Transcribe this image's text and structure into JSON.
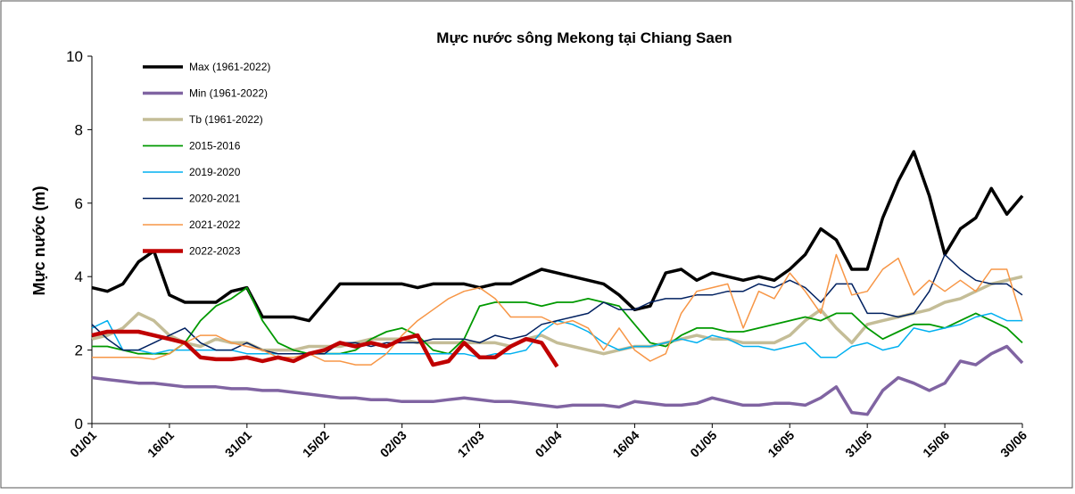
{
  "chart_data": {
    "type": "line",
    "title": "Mực nước sông Mekong tại Chiang Saen",
    "y_label": "Mực nước (m)",
    "categories": [
      "01/01",
      null,
      null,
      null,
      null,
      "16/01",
      null,
      null,
      null,
      null,
      "31/01",
      null,
      null,
      null,
      null,
      "15/02",
      null,
      null,
      null,
      null,
      "02/03",
      null,
      null,
      null,
      null,
      "17/03",
      null,
      null,
      null,
      null,
      "01/04",
      null,
      null,
      null,
      null,
      "16/04",
      null,
      null,
      null,
      null,
      "01/05",
      null,
      null,
      null,
      null,
      "16/05",
      null,
      null,
      null,
      null,
      "31/05",
      null,
      null,
      null,
      null,
      "15/06",
      null,
      null,
      null,
      null,
      "30/06"
    ],
    "ylim": [
      0,
      10
    ],
    "yticks": [
      0,
      2,
      4,
      6,
      8,
      10
    ],
    "legend": "top-left",
    "series": [
      {
        "name": "Max (1961-2022)",
        "color": "#000000",
        "width": 3.5,
        "values": [
          3.7,
          3.6,
          3.8,
          4.4,
          4.7,
          3.5,
          3.3,
          3.3,
          3.3,
          3.6,
          3.7,
          2.9,
          2.9,
          2.9,
          2.8,
          3.3,
          3.8,
          3.8,
          3.8,
          3.8,
          3.8,
          3.7,
          3.8,
          3.8,
          3.8,
          3.7,
          3.8,
          3.8,
          4.0,
          4.2,
          4.1,
          4.0,
          3.9,
          3.8,
          3.5,
          3.1,
          3.2,
          4.1,
          4.2,
          3.9,
          4.1,
          4.0,
          3.9,
          4.0,
          3.9,
          4.2,
          4.6,
          5.3,
          5.0,
          4.2,
          4.2,
          5.6,
          6.6,
          7.4,
          6.2,
          4.6,
          5.3,
          5.6,
          6.4,
          5.7,
          6.2
        ]
      },
      {
        "name": "Min (1961-2022)",
        "color": "#8064a2",
        "width": 3.5,
        "values": [
          1.25,
          1.2,
          1.15,
          1.1,
          1.1,
          1.05,
          1.0,
          1.0,
          1.0,
          0.95,
          0.95,
          0.9,
          0.9,
          0.85,
          0.8,
          0.75,
          0.7,
          0.7,
          0.65,
          0.65,
          0.6,
          0.6,
          0.6,
          0.65,
          0.7,
          0.65,
          0.6,
          0.6,
          0.55,
          0.5,
          0.45,
          0.5,
          0.5,
          0.5,
          0.45,
          0.6,
          0.55,
          0.5,
          0.5,
          0.55,
          0.7,
          0.6,
          0.5,
          0.5,
          0.55,
          0.55,
          0.5,
          0.7,
          1.0,
          0.3,
          0.25,
          0.9,
          1.25,
          1.1,
          0.9,
          1.1,
          1.7,
          1.6,
          1.9,
          2.1,
          1.65
        ]
      },
      {
        "name": "Tb (1961-2022)",
        "color": "#c4bd97",
        "width": 3.5,
        "values": [
          2.3,
          2.4,
          2.6,
          3.0,
          2.8,
          2.4,
          2.2,
          2.1,
          2.3,
          2.2,
          2.2,
          2.0,
          2.0,
          2.0,
          2.1,
          2.1,
          2.1,
          2.2,
          2.3,
          2.3,
          2.3,
          2.2,
          2.2,
          2.2,
          2.2,
          2.2,
          2.2,
          2.1,
          2.3,
          2.4,
          2.2,
          2.1,
          2.0,
          1.9,
          2.0,
          2.1,
          2.1,
          2.2,
          2.3,
          2.4,
          2.3,
          2.3,
          2.2,
          2.2,
          2.2,
          2.4,
          2.8,
          3.1,
          2.6,
          2.2,
          2.7,
          2.8,
          2.9,
          3.0,
          3.1,
          3.3,
          3.4,
          3.6,
          3.8,
          3.9,
          4.0
        ]
      },
      {
        "name": "2015-2016",
        "color": "#009900",
        "width": 1.8,
        "values": [
          2.1,
          2.1,
          2.0,
          1.9,
          1.9,
          1.9,
          2.2,
          2.8,
          3.2,
          3.4,
          3.7,
          2.8,
          2.2,
          2.0,
          1.9,
          1.9,
          1.9,
          2.0,
          2.3,
          2.5,
          2.6,
          2.4,
          2.0,
          1.9,
          2.3,
          3.2,
          3.3,
          3.3,
          3.3,
          3.2,
          3.3,
          3.3,
          3.4,
          3.3,
          3.2,
          2.7,
          2.2,
          2.1,
          2.4,
          2.6,
          2.6,
          2.5,
          2.5,
          2.6,
          2.7,
          2.8,
          2.9,
          2.8,
          3.0,
          3.0,
          2.6,
          2.3,
          2.5,
          2.7,
          2.7,
          2.6,
          2.8,
          3.0,
          2.8,
          2.6,
          2.2
        ]
      },
      {
        "name": "2019-2020",
        "color": "#00b0f0",
        "width": 1.5,
        "values": [
          2.6,
          2.8,
          2.0,
          2.0,
          1.9,
          2.0,
          2.0,
          2.0,
          2.0,
          2.0,
          1.9,
          1.9,
          1.9,
          1.9,
          1.9,
          1.9,
          1.9,
          1.9,
          1.9,
          1.9,
          1.9,
          1.9,
          1.9,
          1.9,
          1.9,
          1.8,
          1.9,
          1.9,
          2.0,
          2.5,
          2.8,
          2.7,
          2.5,
          2.2,
          2.0,
          2.1,
          2.1,
          2.2,
          2.3,
          2.2,
          2.4,
          2.3,
          2.1,
          2.1,
          2.0,
          2.1,
          2.2,
          1.8,
          1.8,
          2.1,
          2.2,
          2.0,
          2.1,
          2.6,
          2.5,
          2.6,
          2.7,
          2.9,
          3.0,
          2.8,
          2.8
        ]
      },
      {
        "name": "2020-2021",
        "color": "#002060",
        "width": 1.5,
        "values": [
          2.7,
          2.3,
          2.0,
          2.0,
          2.2,
          2.4,
          2.6,
          2.2,
          2.0,
          2.0,
          2.2,
          2.0,
          1.9,
          1.9,
          1.9,
          1.9,
          2.2,
          2.2,
          2.1,
          2.2,
          2.2,
          2.2,
          2.3,
          2.3,
          2.3,
          2.2,
          2.4,
          2.3,
          2.4,
          2.7,
          2.8,
          2.9,
          3.0,
          3.3,
          3.1,
          3.1,
          3.3,
          3.4,
          3.4,
          3.5,
          3.5,
          3.6,
          3.6,
          3.8,
          3.7,
          3.9,
          3.7,
          3.3,
          3.8,
          3.8,
          3.0,
          3.0,
          2.9,
          3.0,
          3.6,
          4.6,
          4.2,
          3.9,
          3.8,
          3.8,
          3.5
        ]
      },
      {
        "name": "2021-2022",
        "color": "#f79646",
        "width": 1.5,
        "values": [
          1.8,
          1.8,
          1.8,
          1.8,
          1.75,
          1.9,
          2.2,
          2.4,
          2.4,
          2.2,
          2.1,
          2.0,
          1.8,
          1.8,
          1.9,
          1.7,
          1.7,
          1.6,
          1.6,
          1.9,
          2.4,
          2.8,
          3.1,
          3.4,
          3.6,
          3.7,
          3.4,
          2.9,
          2.9,
          2.9,
          2.7,
          2.8,
          2.6,
          2.0,
          2.6,
          2.0,
          1.7,
          1.9,
          3.0,
          3.6,
          3.7,
          3.8,
          2.6,
          3.6,
          3.4,
          4.1,
          3.6,
          3.0,
          4.6,
          3.5,
          3.6,
          4.2,
          4.5,
          3.5,
          3.9,
          3.6,
          3.9,
          3.6,
          4.2,
          4.2,
          2.8
        ]
      },
      {
        "name": "2022-2023",
        "color": "#c00000",
        "width": 4.5,
        "values": [
          2.4,
          2.5,
          2.5,
          2.5,
          2.4,
          2.3,
          2.2,
          1.8,
          1.75,
          1.75,
          1.8,
          1.7,
          1.8,
          1.7,
          1.9,
          2.0,
          2.2,
          2.1,
          2.2,
          2.1,
          2.3,
          2.4,
          1.6,
          1.7,
          2.2,
          1.8,
          1.8,
          2.1,
          2.3,
          2.2,
          1.55,
          null,
          null,
          null,
          null,
          null,
          null,
          null,
          null,
          null,
          null,
          null,
          null,
          null,
          null,
          null,
          null,
          null,
          null,
          null,
          null,
          null,
          null,
          null,
          null,
          null,
          null,
          null,
          null,
          null,
          null
        ]
      }
    ]
  }
}
